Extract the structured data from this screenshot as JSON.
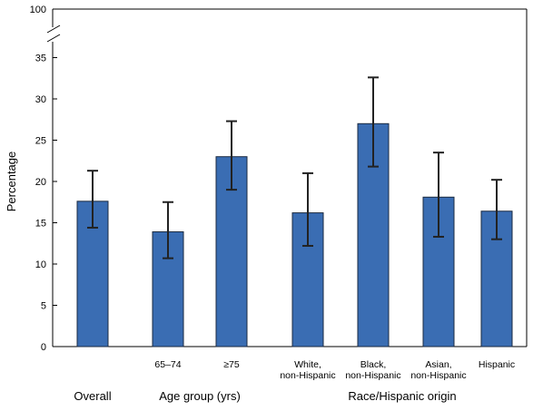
{
  "chart_data": {
    "type": "bar",
    "ylabel": "Percentage",
    "ylim": [
      0,
      40
    ],
    "axis_break": {
      "top_tick_label": "100"
    },
    "yticks": [
      "0",
      "5",
      "10",
      "15",
      "20",
      "25",
      "30",
      "35"
    ],
    "bar_color": "#3a6db3",
    "error_bar_color": "#222222",
    "categories": [
      "",
      "65–74",
      "≥75",
      "White, non-Hispanic",
      "Black, non-Hispanic",
      "Asian, non-Hispanic",
      "Hispanic"
    ],
    "category_lines": [
      [
        ""
      ],
      [
        "65–74"
      ],
      [
        "≥75"
      ],
      [
        "White,",
        "non-Hispanic"
      ],
      [
        "Black,",
        "non-Hispanic"
      ],
      [
        "Asian,",
        "non-Hispanic"
      ],
      [
        "Hispanic"
      ]
    ],
    "values": [
      17.6,
      13.9,
      23.0,
      16.2,
      27.0,
      18.1,
      16.4
    ],
    "ci_low": [
      14.4,
      10.7,
      19.0,
      12.2,
      21.8,
      13.3,
      13.0
    ],
    "ci_high": [
      21.3,
      17.5,
      27.3,
      21.0,
      32.6,
      23.5,
      20.2
    ],
    "groups": [
      {
        "label": "Overall",
        "members": [
          0
        ]
      },
      {
        "label": "Age group (yrs)",
        "members": [
          1,
          2
        ]
      },
      {
        "label": "Race/Hispanic origin",
        "members": [
          3,
          4,
          5,
          6
        ]
      }
    ]
  }
}
